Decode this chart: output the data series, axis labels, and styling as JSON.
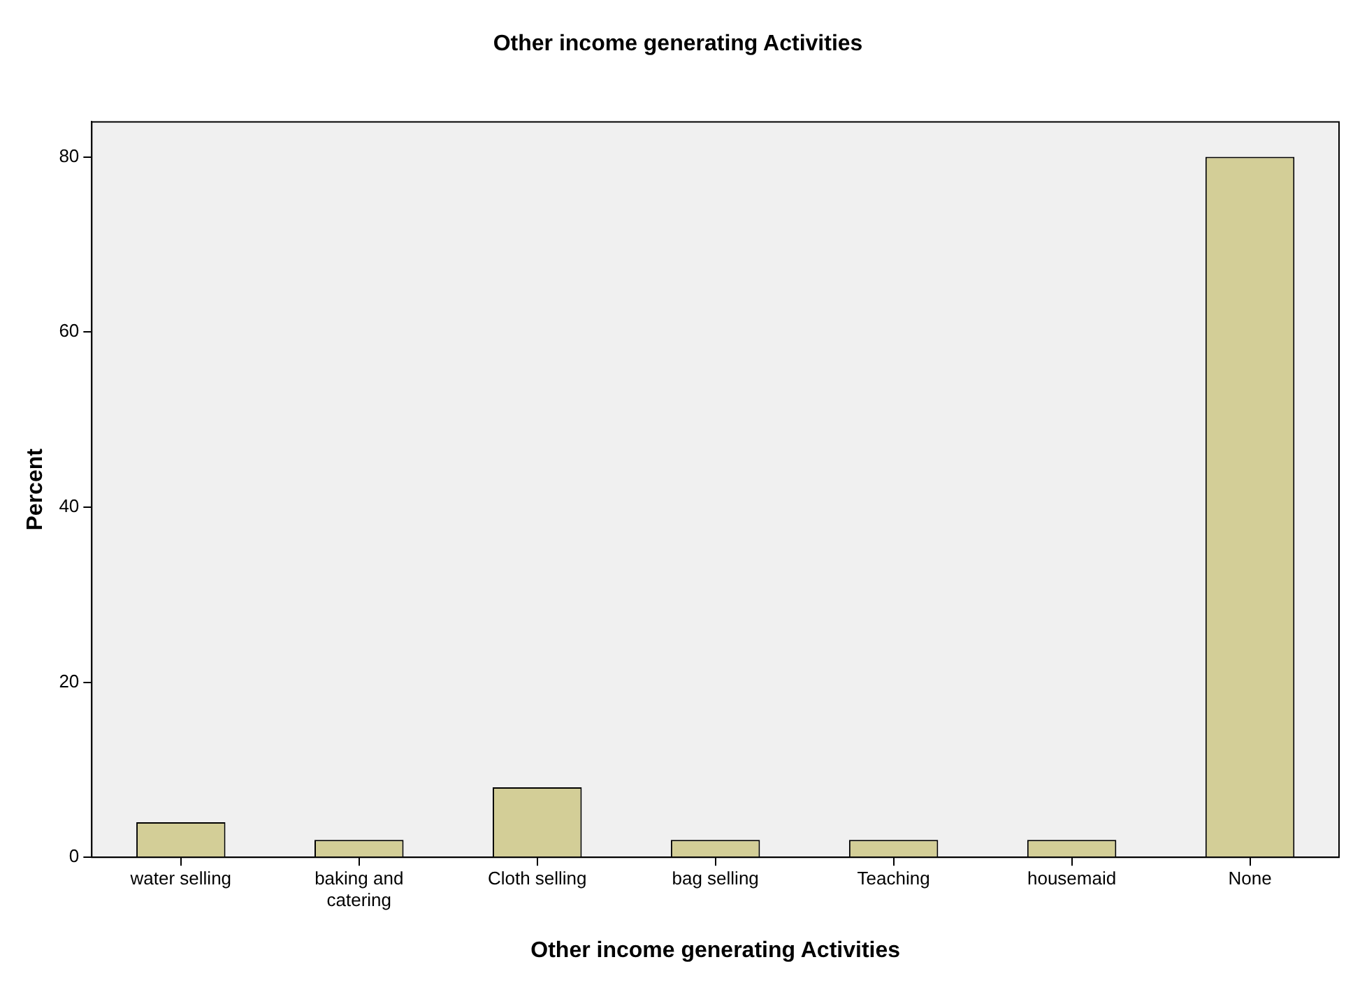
{
  "chart_data": {
    "type": "bar",
    "title": "Other income generating Activities",
    "xlabel": "Other income generating Activities",
    "ylabel": "Percent",
    "categories": [
      "water selling",
      "baking and catering",
      "Cloth selling",
      "bag selling",
      "Teaching",
      "housemaid",
      "None"
    ],
    "values": [
      4,
      2,
      8,
      2,
      2,
      2,
      80
    ],
    "color": "#d3ce97",
    "ylim": [
      0,
      84
    ],
    "yticks": [
      0,
      20,
      40,
      60,
      80
    ],
    "grid": false,
    "legend": false
  }
}
